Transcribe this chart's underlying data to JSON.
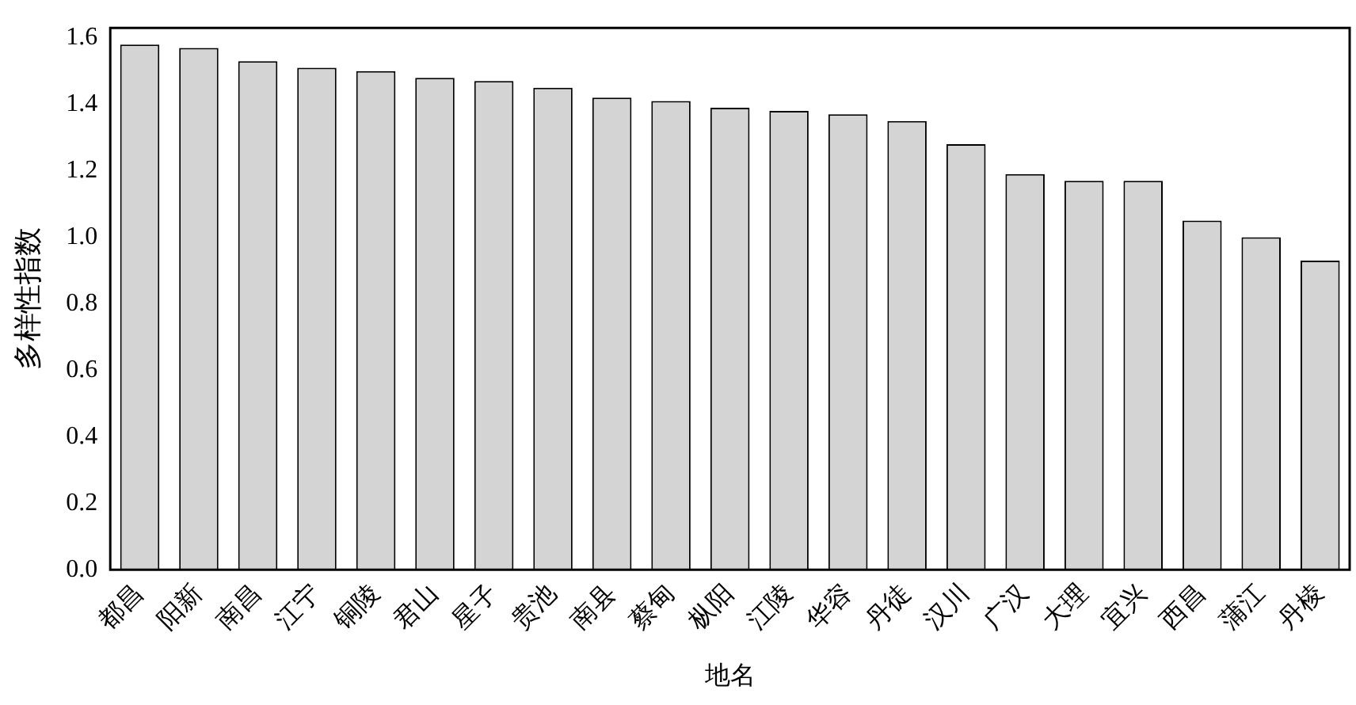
{
  "chart_data": {
    "type": "bar",
    "xlabel": "地名",
    "ylabel": "多样性指数",
    "categories": [
      "都昌",
      "阳新",
      "南昌",
      "江宁",
      "铜陵",
      "君山",
      "星子",
      "贵池",
      "南县",
      "蔡甸",
      "枞阳",
      "江陵",
      "华容",
      "丹徒",
      "汉川",
      "广汉",
      "大理",
      "宜兴",
      "西昌",
      "蒲江",
      "丹棱"
    ],
    "values": [
      1.58,
      1.57,
      1.53,
      1.51,
      1.5,
      1.48,
      1.47,
      1.45,
      1.42,
      1.41,
      1.39,
      1.38,
      1.37,
      1.35,
      1.28,
      1.19,
      1.17,
      1.17,
      1.05,
      1.0,
      0.93
    ],
    "color": "#d4d4d4",
    "ylim": [
      0,
      1.63
    ],
    "yticks": [
      {
        "value": 0,
        "label": "0.0"
      },
      {
        "value": 0.2,
        "label": "0.2"
      },
      {
        "value": 0.4,
        "label": "0.4"
      },
      {
        "value": 0.6,
        "label": "0.6"
      },
      {
        "value": 0.8,
        "label": "0.8"
      },
      {
        "value": 1,
        "label": "1.0"
      },
      {
        "value": 1.2,
        "label": "1.2"
      },
      {
        "value": 1.4,
        "label": "1.4"
      },
      {
        "value": 1.6,
        "label": "1.6"
      }
    ],
    "grid": false,
    "legend": false
  }
}
